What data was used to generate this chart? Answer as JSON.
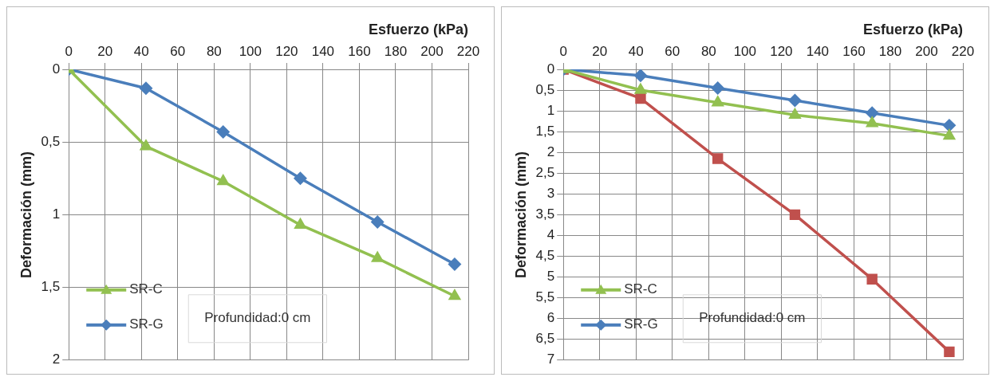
{
  "chart_data": [
    {
      "type": "line",
      "xlabel": "Esfuerzo (kPa)",
      "ylabel": "Deformación (mm)",
      "x": [
        0,
        42.5,
        85,
        127.5,
        170,
        212.5
      ],
      "series": [
        {
          "name": "SR-C",
          "color": "#92c050",
          "marker": "triangle",
          "values": [
            0,
            0.53,
            0.77,
            1.07,
            1.3,
            1.56
          ]
        },
        {
          "name": "SR-G",
          "color": "#4a7ebb",
          "marker": "diamond",
          "values": [
            0,
            0.13,
            0.43,
            0.75,
            1.05,
            1.34
          ]
        }
      ],
      "xlim": [
        0,
        220
      ],
      "xticks": [
        0,
        20,
        40,
        60,
        80,
        100,
        120,
        140,
        160,
        180,
        200,
        220
      ],
      "ylim": [
        2,
        0
      ],
      "yticks": [
        0,
        {
          "value": 0.5,
          "label": "0,5"
        },
        1,
        {
          "value": 1.5,
          "label": "1,5"
        },
        2
      ],
      "grid": true,
      "legend": "bottom left",
      "annotations": [
        "Profundidad:0 cm"
      ]
    },
    {
      "type": "line",
      "xlabel": "Esfuerzo (kPa)",
      "ylabel": "Deformación (mm)",
      "x": [
        0,
        42.5,
        85,
        127.5,
        170,
        212.5
      ],
      "series": [
        {
          "name": "SR-C",
          "color": "#92c050",
          "marker": "triangle",
          "values": [
            0,
            0.5,
            0.8,
            1.1,
            1.3,
            1.6
          ]
        },
        {
          "name": "SR-G",
          "color": "#4a7ebb",
          "marker": "diamond",
          "values": [
            0,
            0.15,
            0.45,
            0.75,
            1.05,
            1.35
          ]
        },
        {
          "color": "#c0504d",
          "marker": "square",
          "values": [
            0,
            0.7,
            2.15,
            3.5,
            5.05,
            6.8
          ]
        }
      ],
      "xlim": [
        0,
        220
      ],
      "xticks": [
        0,
        20,
        40,
        60,
        80,
        100,
        120,
        140,
        160,
        180,
        200,
        220
      ],
      "ylim": [
        7,
        0
      ],
      "yticks": [
        0,
        {
          "value": 0.5,
          "label": "0,5"
        },
        1,
        {
          "value": 1.5,
          "label": "1,5"
        },
        2,
        {
          "value": 2.5,
          "label": "2,5"
        },
        3,
        {
          "value": 3.5,
          "label": "3,5"
        },
        4,
        {
          "value": 4.5,
          "label": "4,5"
        },
        5,
        {
          "value": 5.5,
          "label": "5,5"
        },
        6,
        {
          "value": 6.5,
          "label": "6,5"
        },
        7
      ],
      "grid": true,
      "legend": "bottom left",
      "annotations": [
        "Profundidad:0 cm"
      ]
    }
  ]
}
